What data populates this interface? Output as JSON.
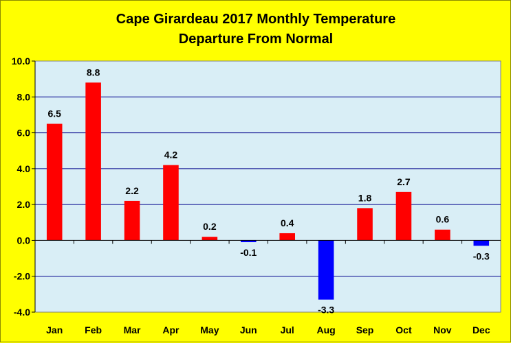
{
  "chart_data": {
    "type": "bar",
    "title_lines": [
      "Cape Girardeau 2017 Monthly Temperature",
      "Departure From Normal"
    ],
    "categories": [
      "Jan",
      "Feb",
      "Mar",
      "Apr",
      "May",
      "Jun",
      "Jul",
      "Aug",
      "Sep",
      "Oct",
      "Nov",
      "Dec"
    ],
    "values": [
      6.5,
      8.8,
      2.2,
      4.2,
      0.2,
      -0.1,
      0.4,
      -3.3,
      1.8,
      2.7,
      0.6,
      -0.3
    ],
    "data_labels": [
      "6.5",
      "8.8",
      "2.2",
      "4.2",
      "0.2",
      "-0.1",
      "0.4",
      "-3.3",
      "1.8",
      "2.7",
      "0.6",
      "-0.3"
    ],
    "ylim": [
      -4.0,
      10.0
    ],
    "yticks": [
      10.0,
      8.0,
      6.0,
      4.0,
      2.0,
      0.0,
      -2.0,
      -4.0
    ],
    "ytick_labels": [
      "10.0",
      "8.0",
      "6.0",
      "4.0",
      "2.0",
      "0.0",
      "-2.0",
      "-4.0"
    ],
    "xlabel": "",
    "ylabel": "",
    "grid": "horizontal",
    "legend": "none",
    "colors": {
      "page_background": "#ffff00",
      "plot_background": "#d9eef6",
      "positive_bar": "#ff0000",
      "negative_bar": "#0000ff",
      "gridline": "#00008b",
      "axis": "#000000"
    }
  }
}
